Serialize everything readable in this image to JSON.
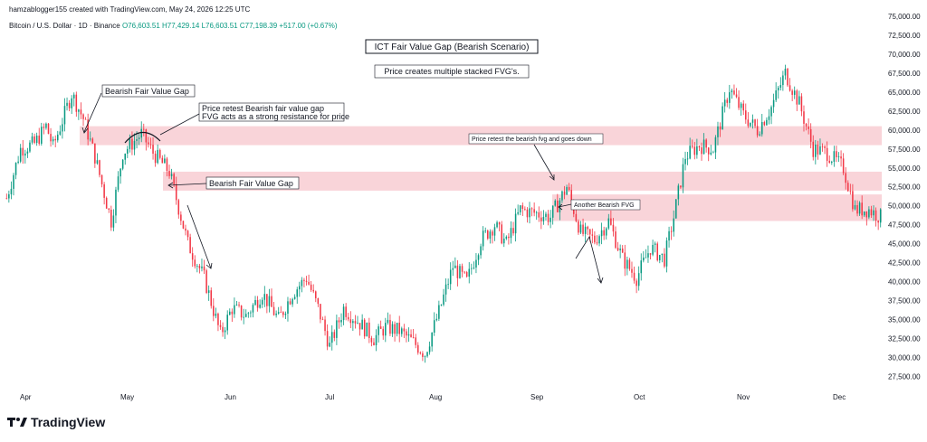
{
  "header": {
    "created_line": "hamzablogger155 created with TradingView.com, May 24, 2026 12:25 UTC",
    "symbol": "Bitcoin / U.S. Dollar · 1D · Binance",
    "ohlc": "O76,603.51 H77,429.14 L76,603.51 C77,198.39 +517.00 (+0.67%)"
  },
  "branding": {
    "logo_text": "TradingView",
    "icon": "tradingview-logo-icon"
  },
  "colors": {
    "up": "#089981",
    "down": "#f23645",
    "zone": "#f8c9cf"
  },
  "chart_data": {
    "type": "candlestick",
    "title": "ICT Fair Value Gap (Bearish Scenario)",
    "subtitle": "Price creates multiple stacked FVG's.",
    "x_ticks": [
      "Apr",
      "May",
      "Jun",
      "Jul",
      "Aug",
      "Sep",
      "Oct",
      "Nov",
      "Dec"
    ],
    "y_ticks": [
      "75,000.00",
      "72,500.00",
      "70,000.00",
      "67,500.00",
      "65,000.00",
      "62,500.00",
      "60,000.00",
      "57,500.00",
      "55,000.00",
      "52,500.00",
      "50,000.00",
      "47,500.00",
      "45,000.00",
      "42,500.00",
      "40,000.00",
      "37,500.00",
      "35,000.00",
      "32,500.00",
      "30,000.00",
      "27,500.00"
    ],
    "ylim": [
      26000,
      75000
    ],
    "fvg_zones": [
      {
        "name": "zone-1",
        "from": 58000,
        "to": 60500
      },
      {
        "name": "zone-2",
        "from": 52000,
        "to": 54500
      },
      {
        "name": "zone-3",
        "from": 48000,
        "to": 51500
      }
    ],
    "annotations": [
      "Bearish Fair Value Gap",
      "Price retest Bearish fair value gap",
      "FVG acts as a strong resistance for price",
      "Bearish Fair Value Gap",
      "Price retest the bearish fvg and goes down",
      "Another Bearish FVG"
    ],
    "path_points": [
      [
        0,
        51000
      ],
      [
        6,
        57500
      ],
      [
        12,
        58200
      ],
      [
        17,
        60500
      ],
      [
        20,
        57800
      ],
      [
        22,
        59500
      ],
      [
        28,
        64800
      ],
      [
        33,
        61500
      ],
      [
        38,
        56500
      ],
      [
        45,
        48000
      ],
      [
        50,
        57000
      ],
      [
        58,
        59500
      ],
      [
        63,
        57000
      ],
      [
        70,
        54500
      ],
      [
        78,
        45000
      ],
      [
        85,
        40500
      ],
      [
        92,
        33000
      ],
      [
        97,
        36500
      ],
      [
        103,
        35500
      ],
      [
        110,
        38500
      ],
      [
        117,
        35000
      ],
      [
        123,
        38500
      ],
      [
        129,
        40500
      ],
      [
        134,
        36500
      ],
      [
        139,
        31500
      ],
      [
        145,
        36500
      ],
      [
        152,
        34500
      ],
      [
        158,
        32500
      ],
      [
        163,
        34000
      ],
      [
        169,
        33500
      ],
      [
        175,
        32000
      ],
      [
        180,
        30500
      ],
      [
        186,
        36000
      ],
      [
        192,
        42000
      ],
      [
        198,
        40000
      ],
      [
        204,
        45500
      ],
      [
        210,
        47500
      ],
      [
        215,
        45000
      ],
      [
        221,
        49500
      ],
      [
        228,
        49000
      ],
      [
        234,
        48500
      ],
      [
        241,
        52500
      ],
      [
        247,
        46500
      ],
      [
        253,
        45500
      ],
      [
        259,
        48000
      ],
      [
        265,
        43000
      ],
      [
        271,
        40500
      ],
      [
        277,
        44500
      ],
      [
        283,
        43000
      ],
      [
        287,
        48500
      ],
      [
        292,
        56500
      ],
      [
        298,
        58000
      ],
      [
        304,
        57500
      ],
      [
        311,
        65500
      ],
      [
        317,
        62000
      ],
      [
        323,
        60000
      ],
      [
        329,
        63000
      ],
      [
        335,
        67500
      ],
      [
        341,
        63500
      ],
      [
        347,
        57500
      ],
      [
        353,
        57000
      ],
      [
        360,
        55000
      ],
      [
        365,
        49500
      ],
      [
        371,
        49500
      ],
      [
        376,
        48500
      ]
    ]
  }
}
